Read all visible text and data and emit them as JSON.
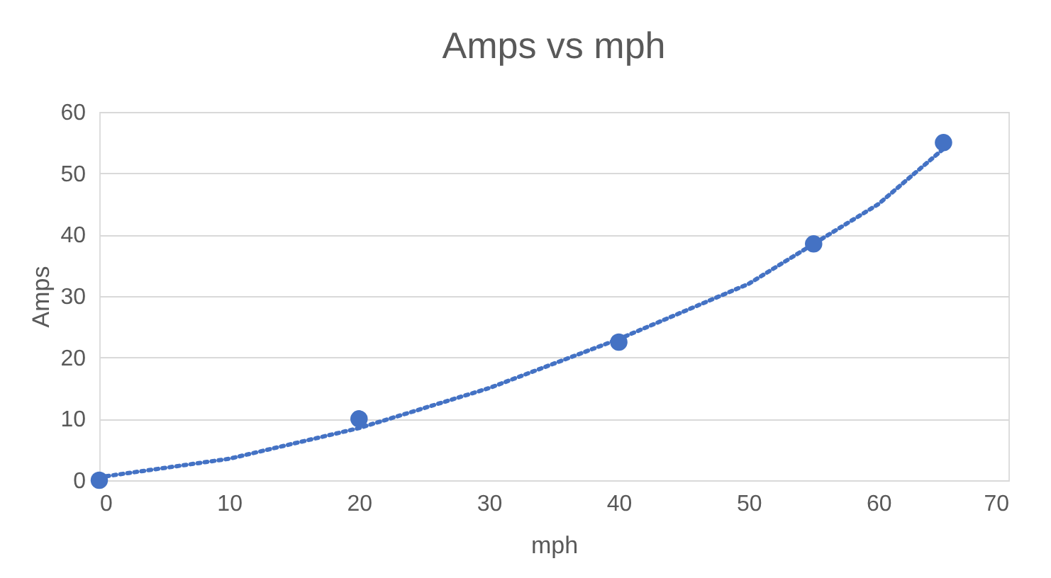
{
  "chart_data": {
    "type": "scatter",
    "title": "Amps vs mph",
    "xlabel": "mph",
    "ylabel": "Amps",
    "series": [
      {
        "color": "#4472c4",
        "x": [
          0,
          20,
          40,
          55,
          65
        ],
        "values": [
          0,
          10,
          22.5,
          38.5,
          55
        ],
        "marker": "circle"
      },
      {
        "type": "line",
        "color": "#4472c4",
        "line_style": "dotted",
        "x": [
          0,
          10,
          20,
          30,
          40,
          50,
          60,
          65
        ],
        "values": [
          0.5,
          3.5,
          8.5,
          15,
          23,
          32,
          45,
          54
        ]
      }
    ],
    "xlim": [
      0,
      70
    ],
    "xticks": [
      0,
      10,
      20,
      30,
      40,
      50,
      60,
      70
    ],
    "ylim": [
      0,
      60
    ],
    "yticks": [
      0,
      10,
      20,
      30,
      40,
      50,
      60
    ],
    "grid": "y"
  }
}
